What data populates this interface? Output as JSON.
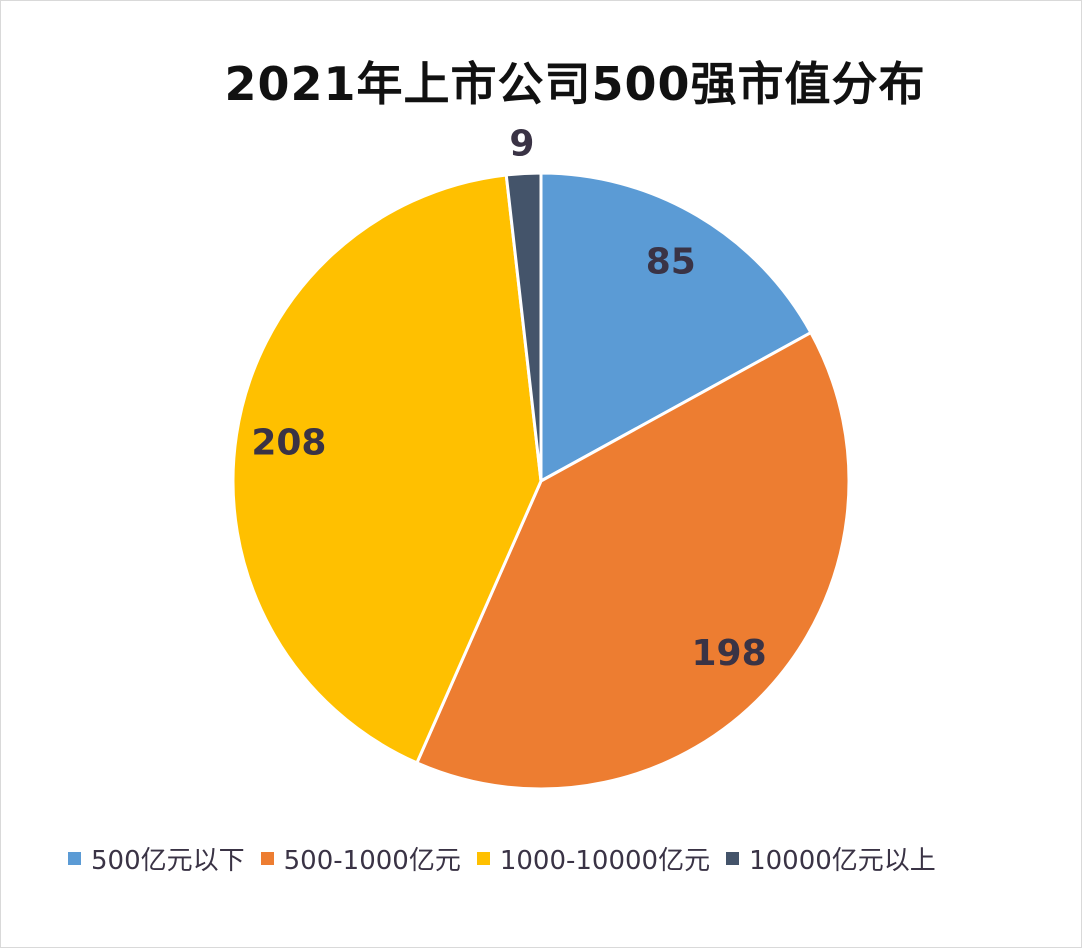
{
  "chart_data": {
    "type": "pie",
    "title": "2021年上市公司500强市值分布",
    "categories": [
      "500亿元以下",
      "500-1000亿元",
      "1000-10000亿元",
      "10000亿元以上"
    ],
    "values": [
      85,
      198,
      208,
      9
    ],
    "colors": [
      "#5b9bd5",
      "#ed7d31",
      "#ffc000",
      "#44546a"
    ],
    "data_labels": [
      "85",
      "198",
      "208",
      "9"
    ],
    "start": "top, clockwise",
    "legend_position": "bottom"
  }
}
